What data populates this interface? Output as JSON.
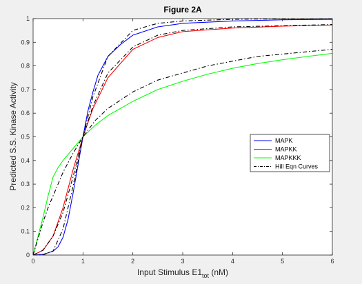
{
  "chart_data": {
    "type": "line",
    "title": "Figure 2A",
    "xlabel": "Input Stimulus E1",
    "xlabel_sub": "tot",
    "xlabel_suffix": " (nM)",
    "ylabel": "Predicted S.S. Kinase Activity",
    "xlim": [
      0,
      6
    ],
    "ylim": [
      0,
      1
    ],
    "xticks": [
      0,
      1,
      2,
      3,
      4,
      5,
      6
    ],
    "yticks": [
      0,
      0.1,
      0.2,
      0.3,
      0.4,
      0.5,
      0.6,
      0.7,
      0.8,
      0.9,
      1
    ],
    "ytick_labels": [
      "0",
      "0.1",
      "0.2",
      "0.3",
      "0.4",
      "0.5",
      "0.6",
      "0.7",
      "0.8",
      "0.9",
      "1"
    ],
    "grid": false,
    "legend_position": "right",
    "series": [
      {
        "name": "MAPK",
        "color": "#0000ff",
        "style": "solid",
        "x": [
          0,
          0.2,
          0.4,
          0.5,
          0.6,
          0.7,
          0.8,
          0.9,
          1.0,
          1.1,
          1.2,
          1.3,
          1.5,
          1.75,
          2.0,
          2.5,
          3.0,
          4.0,
          5.0,
          6.0
        ],
        "y": [
          0,
          0.003,
          0.016,
          0.035,
          0.075,
          0.15,
          0.26,
          0.38,
          0.5,
          0.61,
          0.69,
          0.76,
          0.84,
          0.89,
          0.93,
          0.965,
          0.98,
          0.99,
          0.995,
          0.997
        ]
      },
      {
        "name": "MAPKK",
        "color": "#ff0000",
        "style": "solid",
        "x": [
          0,
          0.2,
          0.4,
          0.6,
          0.8,
          1.0,
          1.2,
          1.5,
          2.0,
          2.5,
          3.0,
          4.0,
          5.0,
          6.0
        ],
        "y": [
          0,
          0.02,
          0.08,
          0.2,
          0.36,
          0.5,
          0.62,
          0.75,
          0.87,
          0.92,
          0.945,
          0.96,
          0.968,
          0.973
        ]
      },
      {
        "name": "MAPKKK",
        "color": "#00ff00",
        "style": "solid",
        "x": [
          0,
          0.1,
          0.2,
          0.3,
          0.4,
          0.5,
          0.6,
          0.8,
          1.0,
          1.25,
          1.5,
          2.0,
          2.5,
          3.0,
          3.5,
          4.0,
          4.5,
          5.0,
          5.5,
          6.0
        ],
        "y": [
          0,
          0.08,
          0.16,
          0.25,
          0.33,
          0.37,
          0.4,
          0.45,
          0.5,
          0.55,
          0.59,
          0.65,
          0.7,
          0.735,
          0.765,
          0.79,
          0.81,
          0.826,
          0.84,
          0.853
        ]
      },
      {
        "name": "Hill Eqn Curves",
        "color": "#000000",
        "style": "dashdot",
        "x": [
          0,
          0.2,
          0.4,
          0.6,
          0.8,
          1.0,
          1.2,
          1.5,
          2.0,
          2.5,
          3.0,
          4.0,
          5.0,
          6.0
        ],
        "y": [
          0,
          0.0006,
          0.017,
          0.11,
          0.29,
          0.5,
          0.67,
          0.84,
          0.95,
          0.98,
          0.99,
          0.997,
          0.999,
          1.0
        ]
      },
      {
        "name": "",
        "color": "#000000",
        "style": "dashdot",
        "legend": false,
        "x": [
          0,
          0.2,
          0.4,
          0.6,
          0.8,
          1.0,
          1.2,
          1.5,
          2.0,
          2.5,
          3.0,
          4.0,
          5.0,
          6.0
        ],
        "y": [
          0,
          0.021,
          0.08,
          0.18,
          0.33,
          0.5,
          0.63,
          0.77,
          0.88,
          0.93,
          0.95,
          0.965,
          0.97,
          0.975
        ]
      },
      {
        "name": "",
        "color": "#000000",
        "style": "dashdot",
        "legend": false,
        "x": [
          0,
          0.1,
          0.2,
          0.3,
          0.4,
          0.6,
          0.8,
          1.0,
          1.25,
          1.5,
          2.0,
          2.5,
          3.0,
          3.5,
          4.0,
          4.5,
          5.0,
          5.5,
          6.0
        ],
        "y": [
          0,
          0.07,
          0.14,
          0.2,
          0.25,
          0.35,
          0.43,
          0.5,
          0.57,
          0.62,
          0.69,
          0.74,
          0.77,
          0.8,
          0.82,
          0.84,
          0.85,
          0.86,
          0.87
        ]
      }
    ]
  }
}
